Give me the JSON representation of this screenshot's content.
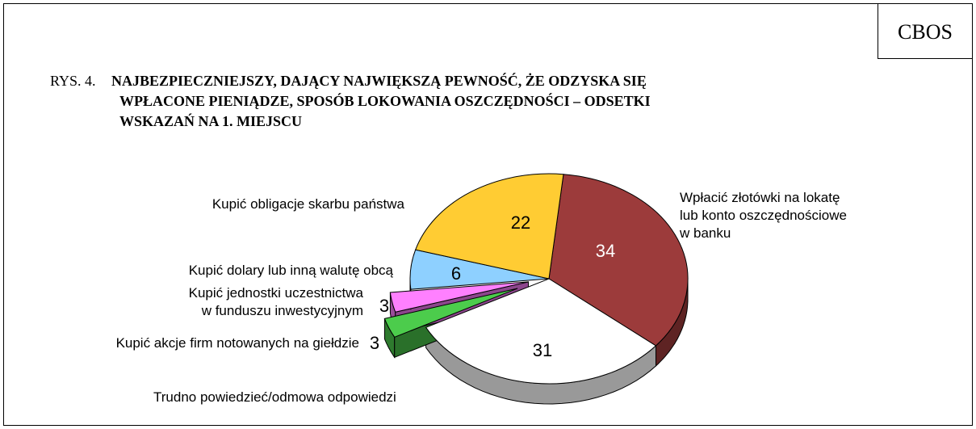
{
  "header": {
    "badge": "CBOS"
  },
  "chart_data": {
    "type": "pie3d",
    "prefix": "RYS. 4.",
    "title": "NAJBEZPIECZNIEJSZY, DAJĄCY NAJWIĘKSZĄ PEWNOŚĆ, ŻE ODZYSKA SIĘ\nWPŁACONE PIENIĄDZE, SPOSÓB LOKOWANIA OSZCZĘDNOŚCI – ODSETKI\nWSKAZAŃ NA 1. MIEJSCU",
    "categories": [
      "Wpłacić złotówki na lokatę\nlub konto oszczędnościowe\nw banku",
      "Trudno powiedzieć/odmowa odpowiedzi",
      "Kupić akcje firm notowanych na giełdzie",
      "Kupić jednostki uczestnictwa\nw funduszu inwestycyjnym",
      "Kupić dolary lub inną walutę obcą",
      "Kupić obligacje skarbu państwa"
    ],
    "values": [
      34,
      31,
      3,
      3,
      6,
      22
    ],
    "colors": [
      "#9c3b3b",
      "#ffffff",
      "#4ccc4c",
      "#ff80ff",
      "#8ed0ff",
      "#ffcc33"
    ]
  }
}
